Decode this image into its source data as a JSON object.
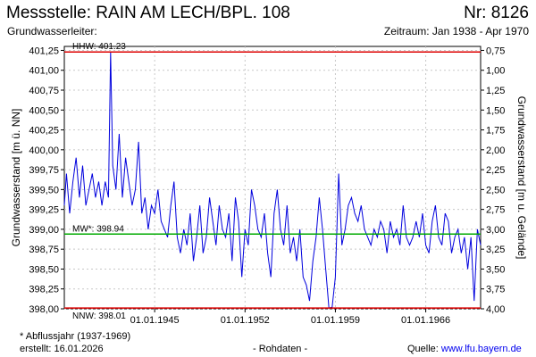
{
  "header": {
    "title": "Messstelle: RAIN AM LECH/BPL. 108",
    "number": "Nr: 8126",
    "aquifer": "Grundwasserleiter:",
    "period": "Zeitraum: Jan 1938 - Apr 1970"
  },
  "footer": {
    "footnote": "* Abflussjahr (1937-1969)",
    "created": "erstellt:  16.01.2026",
    "rawdata": "- Rohdaten -",
    "source_label": "Quelle:",
    "source_url": "www.lfu.bayern.de"
  },
  "colors": {
    "series": "#0000dd",
    "extreme_lines": "#dd0000",
    "mean_line": "#00aa00",
    "grid": "#c8c8c8"
  },
  "chart_data": {
    "type": "line",
    "ylabel": "Grundwasserstand [m ü. NN]",
    "y2label": "Grundwasserstand [m u. Gelände]",
    "ylim": [
      398.0,
      401.3
    ],
    "y2lim": [
      4.0,
      0.7
    ],
    "y_ticks": [
      "398,00",
      "398,25",
      "398,50",
      "398,75",
      "399,00",
      "399,25",
      "399,50",
      "399,75",
      "400,00",
      "400,25",
      "400,50",
      "400,75",
      "401,00",
      "401,25"
    ],
    "y2_ticks": [
      "4,00",
      "3,75",
      "3,50",
      "3,25",
      "3,00",
      "2,75",
      "2,50",
      "2,25",
      "2,00",
      "1,75",
      "1,50",
      "1,25",
      "1,00",
      "0,75"
    ],
    "x_ticks": [
      "01.01.1945",
      "01.01.1952",
      "01.01.1959",
      "01.01.1966"
    ],
    "xlim": [
      "1938-01",
      "1970-04"
    ],
    "grid": true,
    "reference_lines": [
      {
        "label": "HHW: 401.23",
        "value": 401.23,
        "color": "red"
      },
      {
        "label": "MW*: 398.94",
        "value": 398.94,
        "color": "green"
      },
      {
        "label": "NNW: 398.01",
        "value": 398.01,
        "color": "red"
      }
    ],
    "series": [
      {
        "x": [
          "1938-01",
          "1938-03",
          "1938-06",
          "1938-09",
          "1938-12",
          "1939-03",
          "1939-06",
          "1939-09",
          "1939-12",
          "1940-03",
          "1940-06",
          "1940-09",
          "1940-12",
          "1941-03",
          "1941-06",
          "1941-08",
          "1941-10",
          "1942-01",
          "1942-04",
          "1942-07",
          "1942-10",
          "1943-01",
          "1943-04",
          "1943-07",
          "1943-10",
          "1944-01",
          "1944-04",
          "1944-07",
          "1944-10",
          "1945-01",
          "1945-04",
          "1945-07",
          "1945-10",
          "1946-01",
          "1946-04",
          "1946-07",
          "1946-10",
          "1947-01",
          "1947-04",
          "1947-07",
          "1947-10",
          "1948-01",
          "1948-04",
          "1948-07",
          "1948-10",
          "1949-01",
          "1949-04",
          "1949-07",
          "1949-10",
          "1950-01",
          "1950-04",
          "1950-07",
          "1950-10",
          "1951-01",
          "1951-04",
          "1951-07",
          "1951-10",
          "1952-01",
          "1952-04",
          "1952-07",
          "1952-10",
          "1953-01",
          "1953-04",
          "1953-07",
          "1953-10",
          "1954-01",
          "1954-04",
          "1954-07",
          "1954-10",
          "1955-01",
          "1955-04",
          "1955-07",
          "1955-10",
          "1956-01",
          "1956-04",
          "1956-07",
          "1956-10",
          "1957-01",
          "1957-04",
          "1957-07",
          "1957-10",
          "1958-01",
          "1958-04",
          "1958-07",
          "1958-10",
          "1959-01",
          "1959-04",
          "1959-07",
          "1959-10",
          "1960-01",
          "1960-04",
          "1960-07",
          "1960-10",
          "1961-01",
          "1961-04",
          "1961-07",
          "1961-10",
          "1962-01",
          "1962-04",
          "1962-07",
          "1962-10",
          "1963-01",
          "1963-04",
          "1963-07",
          "1963-10",
          "1964-01",
          "1964-04",
          "1964-07",
          "1964-10",
          "1965-01",
          "1965-04",
          "1965-07",
          "1965-10",
          "1966-01",
          "1966-04",
          "1966-07",
          "1966-10",
          "1967-01",
          "1967-04",
          "1967-07",
          "1967-10",
          "1968-01",
          "1968-04",
          "1968-07",
          "1968-10",
          "1969-01",
          "1969-04",
          "1969-07",
          "1969-10",
          "1970-01",
          "1970-04"
        ],
        "y": [
          399.3,
          399.7,
          399.2,
          399.6,
          399.9,
          399.4,
          399.8,
          399.3,
          399.5,
          399.7,
          399.4,
          399.6,
          399.3,
          399.6,
          399.4,
          401.23,
          399.8,
          399.5,
          400.2,
          399.4,
          399.9,
          399.6,
          399.3,
          399.5,
          400.1,
          399.2,
          399.4,
          399.0,
          399.3,
          399.2,
          399.5,
          399.1,
          399.0,
          398.9,
          399.3,
          399.6,
          398.9,
          398.7,
          399.0,
          398.8,
          399.2,
          398.6,
          398.9,
          399.3,
          398.7,
          398.9,
          399.4,
          399.1,
          398.8,
          399.3,
          399.0,
          398.9,
          399.2,
          398.6,
          399.4,
          399.1,
          398.4,
          399.0,
          398.8,
          399.5,
          399.3,
          399.0,
          398.9,
          399.2,
          398.7,
          398.4,
          399.2,
          399.5,
          399.0,
          398.8,
          399.3,
          398.7,
          398.9,
          398.6,
          399.0,
          398.4,
          398.3,
          398.1,
          398.6,
          398.9,
          399.4,
          399.0,
          398.5,
          398.01,
          398.02,
          398.4,
          399.7,
          398.8,
          399.0,
          399.3,
          399.4,
          399.2,
          399.1,
          399.3,
          399.0,
          398.9,
          398.8,
          399.0,
          398.9,
          399.1,
          399.0,
          398.7,
          399.1,
          398.9,
          399.0,
          398.8,
          399.3,
          398.9,
          398.8,
          398.9,
          399.1,
          398.9,
          399.2,
          398.8,
          398.7,
          399.1,
          399.3,
          398.9,
          398.8,
          399.2,
          399.1,
          398.7,
          398.9,
          399.0,
          398.7,
          398.9,
          398.5,
          398.9,
          398.1,
          399.0,
          398.8
        ]
      }
    ]
  }
}
